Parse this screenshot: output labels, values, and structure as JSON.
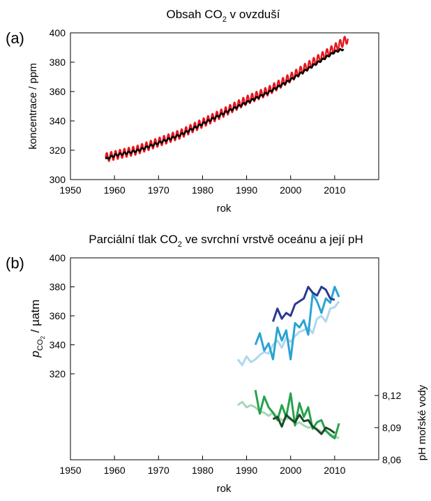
{
  "chart_data": [
    {
      "panel_label": "(a)",
      "type": "line",
      "title": "Obsah CO₂ v ovzduší",
      "xlabel": "rok",
      "ylabel": "koncentrace / ppm",
      "xlim": [
        1950,
        2020
      ],
      "ylim": [
        300,
        400
      ],
      "xticks": [
        1950,
        1960,
        1970,
        1980,
        1990,
        2000,
        2010
      ],
      "yticks": [
        300,
        320,
        340,
        360,
        380,
        400
      ],
      "grid": false,
      "series": [
        {
          "color": "#e8141c",
          "seasonal_amplitude": 3,
          "x": [
            1958,
            1960,
            1965,
            1970,
            1975,
            1980,
            1985,
            1990,
            1995,
            2000,
            2005,
            2010,
            2013
          ],
          "y": [
            315,
            316.5,
            320,
            325.5,
            331,
            338.5,
            346,
            354,
            360.5,
            369.5,
            379.5,
            389.5,
            396
          ]
        },
        {
          "color": "#000000",
          "seasonal_amplitude": 0.7,
          "x": [
            1958,
            1960,
            1965,
            1970,
            1975,
            1980,
            1985,
            1990,
            1995,
            2000,
            2005,
            2010,
            2012
          ],
          "y": [
            314,
            316.5,
            319.5,
            325,
            330.5,
            338,
            345.5,
            352.5,
            359.5,
            368,
            377.5,
            387,
            389
          ]
        }
      ]
    },
    {
      "panel_label": "(b)",
      "type": "line",
      "title": "Parciální tlak CO₂ ve svrchní vrstvě oceánu a její pH",
      "xlabel": "rok",
      "ylabel_left": "pCO₂ / µatm",
      "ylabel_right": "pH mořské vody",
      "xlim": [
        1950,
        2020
      ],
      "xticks": [
        1950,
        1960,
        1970,
        1980,
        1990,
        2000,
        2010
      ],
      "left_axis": {
        "yticks": [
          320,
          340,
          360,
          380,
          400
        ]
      },
      "right_axis": {
        "yticks": [
          "8,06",
          "8,09",
          "8,12"
        ]
      },
      "grid": false,
      "pco2_series": [
        {
          "color": "#aed8ee",
          "x": [
            1988,
            1989,
            1990,
            1991,
            1992,
            1993,
            1994,
            1995,
            1996,
            1997,
            1998,
            1999,
            2000,
            2001,
            2002,
            2003,
            2004,
            2005,
            2006,
            2007,
            2008,
            2009,
            2010,
            2011
          ],
          "y": [
            330,
            326,
            332,
            328,
            330,
            333,
            335,
            334,
            340,
            343,
            338,
            345,
            342,
            346,
            349,
            350,
            352,
            348,
            358,
            360,
            356,
            365,
            366,
            370
          ]
        },
        {
          "color": "#2aa3d3",
          "x": [
            1992,
            1993,
            1994,
            1995,
            1996,
            1997,
            1998,
            1999,
            2000,
            2001,
            2002,
            2003,
            2004,
            2005,
            2006,
            2007,
            2008,
            2009,
            2010,
            2011
          ],
          "y": [
            340,
            348,
            336,
            341,
            330,
            352,
            343,
            350,
            330,
            355,
            352,
            357,
            347,
            375,
            370,
            362,
            372,
            369,
            380,
            373
          ]
        },
        {
          "color": "#293a8e",
          "x": [
            1996,
            1997,
            1998,
            1999,
            2000,
            2001,
            2002,
            2003,
            2004,
            2005,
            2006,
            2007,
            2008,
            2009,
            2010
          ],
          "y": [
            356,
            365,
            358,
            362,
            360,
            368,
            370,
            372,
            380,
            376,
            374,
            380,
            378,
            372,
            371
          ]
        }
      ],
      "ph_series": [
        {
          "color": "#a6d6b6",
          "x": [
            1988,
            1989,
            1990,
            1991,
            1992,
            1993,
            1994,
            1995,
            1996,
            1997,
            1998,
            1999,
            2000,
            2001,
            2002,
            2003,
            2004,
            2005,
            2006,
            2007,
            2008,
            2009,
            2010,
            2011
          ],
          "y": [
            8.111,
            8.114,
            8.109,
            8.111,
            8.109,
            8.105,
            8.104,
            8.101,
            8.104,
            8.1,
            8.097,
            8.098,
            8.099,
            8.093,
            8.095,
            8.092,
            8.09,
            8.091,
            8.089,
            8.086,
            8.087,
            8.084,
            8.082,
            8.08
          ]
        },
        {
          "color": "#27a24b",
          "x": [
            1992,
            1993,
            1994,
            1995,
            1996,
            1997,
            1998,
            1999,
            2000,
            2001,
            2002,
            2003,
            2004,
            2005,
            2006,
            2007,
            2008,
            2009,
            2010,
            2011
          ],
          "y": [
            8.125,
            8.103,
            8.119,
            8.109,
            8.104,
            8.097,
            8.111,
            8.1,
            8.122,
            8.092,
            8.113,
            8.1,
            8.109,
            8.089,
            8.095,
            8.097,
            8.087,
            8.083,
            8.08,
            8.094
          ]
        },
        {
          "color": "#1a4a24",
          "x": [
            1996,
            1997,
            1998,
            1999,
            2000,
            2001,
            2002,
            2003,
            2004,
            2005,
            2006,
            2007,
            2008,
            2009,
            2010
          ],
          "y": [
            8.098,
            8.1,
            8.091,
            8.102,
            8.098,
            8.095,
            8.102,
            8.096,
            8.097,
            8.091,
            8.088,
            8.084,
            8.09,
            8.088,
            8.085
          ]
        }
      ]
    }
  ]
}
